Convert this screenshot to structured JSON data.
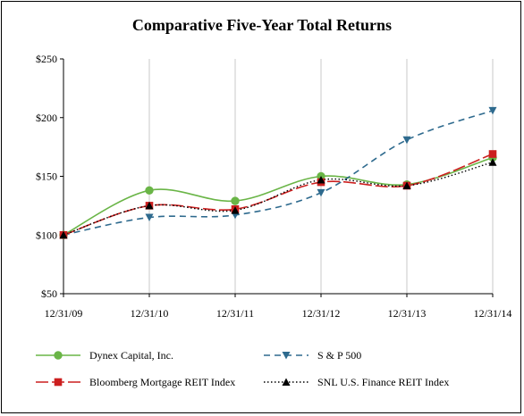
{
  "chart_data": {
    "type": "line",
    "title": "Comparative Five-Year Total Returns",
    "categories": [
      "12/31/09",
      "12/31/10",
      "12/31/11",
      "12/31/12",
      "12/31/13",
      "12/31/14"
    ],
    "y_ticks": [
      "$50",
      "$100",
      "$150",
      "$200",
      "$250"
    ],
    "y_tick_values": [
      50,
      100,
      150,
      200,
      250
    ],
    "ylim": [
      50,
      250
    ],
    "grid": {
      "vertical": true,
      "horizontal": false
    },
    "legend_position": "bottom",
    "series": [
      {
        "name": "Dynex Capital, Inc.",
        "values": [
          100,
          138,
          129,
          150,
          143,
          166
        ],
        "color": "#6ab547",
        "line": "solid",
        "marker": "circle"
      },
      {
        "name": "S & P 500",
        "values": [
          100,
          115,
          117,
          136,
          181,
          206
        ],
        "color": "#2e6a8e",
        "line": "dashed",
        "marker": "triangle-down"
      },
      {
        "name": "Bloomberg Mortgage REIT Index",
        "values": [
          100,
          125,
          122,
          145,
          142,
          169
        ],
        "color": "#cc1f1f",
        "line": "longdash",
        "marker": "square"
      },
      {
        "name": "SNL U.S. Finance REIT Index",
        "values": [
          100,
          125,
          121,
          147,
          142,
          162
        ],
        "color": "#000000",
        "line": "dotted",
        "marker": "triangle-up"
      }
    ]
  }
}
